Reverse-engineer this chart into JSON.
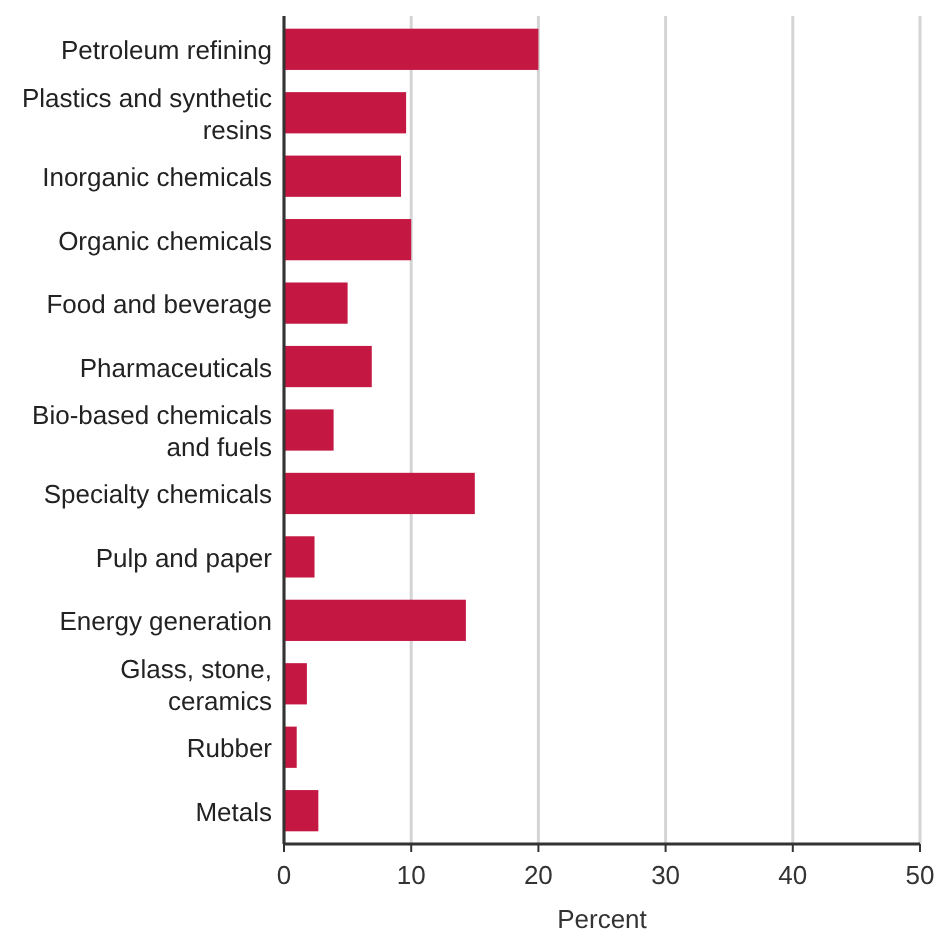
{
  "chart_data": {
    "type": "bar",
    "orientation": "horizontal",
    "xlabel": "Percent",
    "categories": [
      "Petroleum refining",
      "Plastics and synthetic resins",
      "Inorganic chemicals",
      "Organic chemicals",
      "Food and beverage",
      "Pharmaceuticals",
      "Bio-based chemicals and fuels",
      "Specialty chemicals",
      "Pulp and paper",
      "Energy generation",
      "Glass, stone, ceramics",
      "Rubber",
      "Metals"
    ],
    "values": [
      20,
      9.6,
      9.2,
      10,
      5,
      6.9,
      3.9,
      15,
      2.4,
      14.3,
      1.8,
      1,
      2.7
    ],
    "color": "#c41843",
    "xlim": [
      0,
      50
    ],
    "xticks": [
      0,
      10,
      20,
      30,
      40,
      50
    ],
    "grid": "x"
  }
}
